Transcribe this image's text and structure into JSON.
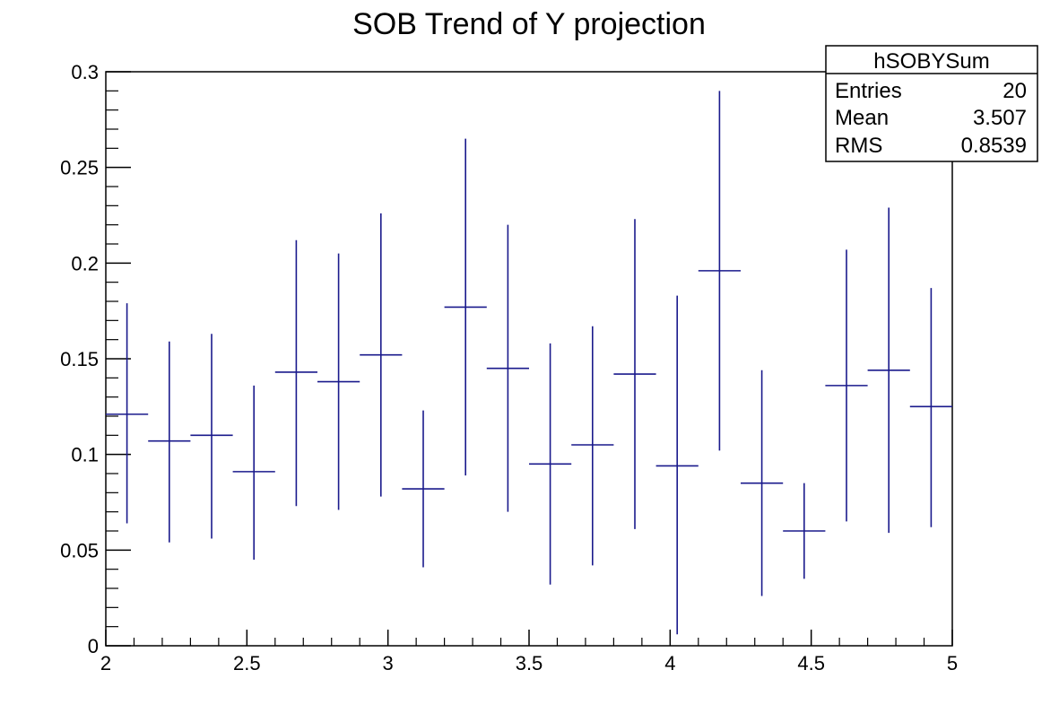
{
  "chart_data": {
    "type": "scatter",
    "title": "SOB Trend of Y projection",
    "xlabel": "",
    "ylabel": "",
    "xlim": [
      2,
      5
    ],
    "ylim": [
      0,
      0.3
    ],
    "x_ticks": [
      "2",
      "2.5",
      "3",
      "3.5",
      "4",
      "4.5",
      "5"
    ],
    "y_ticks": [
      "0",
      "0.05",
      "0.1",
      "0.15",
      "0.2",
      "0.25",
      "0.3"
    ],
    "bin_width": 0.15,
    "colors": {
      "series": "#1a1a8c",
      "frame": "#000000"
    },
    "series": [
      {
        "points": [
          {
            "x": 2.075,
            "y": 0.121,
            "lo": 0.064,
            "hi": 0.179
          },
          {
            "x": 2.225,
            "y": 0.107,
            "lo": 0.054,
            "hi": 0.159
          },
          {
            "x": 2.375,
            "y": 0.11,
            "lo": 0.056,
            "hi": 0.163
          },
          {
            "x": 2.525,
            "y": 0.091,
            "lo": 0.045,
            "hi": 0.136
          },
          {
            "x": 2.675,
            "y": 0.143,
            "lo": 0.073,
            "hi": 0.212
          },
          {
            "x": 2.825,
            "y": 0.138,
            "lo": 0.071,
            "hi": 0.205
          },
          {
            "x": 2.975,
            "y": 0.152,
            "lo": 0.078,
            "hi": 0.226
          },
          {
            "x": 3.125,
            "y": 0.082,
            "lo": 0.041,
            "hi": 0.123
          },
          {
            "x": 3.275,
            "y": 0.177,
            "lo": 0.089,
            "hi": 0.265
          },
          {
            "x": 3.425,
            "y": 0.145,
            "lo": 0.07,
            "hi": 0.22
          },
          {
            "x": 3.575,
            "y": 0.095,
            "lo": 0.032,
            "hi": 0.158
          },
          {
            "x": 3.725,
            "y": 0.105,
            "lo": 0.042,
            "hi": 0.167
          },
          {
            "x": 3.875,
            "y": 0.142,
            "lo": 0.061,
            "hi": 0.223
          },
          {
            "x": 4.025,
            "y": 0.094,
            "lo": 0.006,
            "hi": 0.183
          },
          {
            "x": 4.175,
            "y": 0.196,
            "lo": 0.102,
            "hi": 0.29
          },
          {
            "x": 4.325,
            "y": 0.085,
            "lo": 0.026,
            "hi": 0.144
          },
          {
            "x": 4.475,
            "y": 0.06,
            "lo": 0.035,
            "hi": 0.085
          },
          {
            "x": 4.625,
            "y": 0.136,
            "lo": 0.065,
            "hi": 0.207
          },
          {
            "x": 4.775,
            "y": 0.144,
            "lo": 0.059,
            "hi": 0.229
          },
          {
            "x": 4.925,
            "y": 0.125,
            "lo": 0.062,
            "hi": 0.187
          }
        ]
      }
    ],
    "stats_box": {
      "name": "hSOBYSum",
      "rows": [
        {
          "label": "Entries",
          "value": "20"
        },
        {
          "label": "Mean",
          "value": "3.507"
        },
        {
          "label": "RMS",
          "value": "0.8539"
        }
      ]
    }
  }
}
